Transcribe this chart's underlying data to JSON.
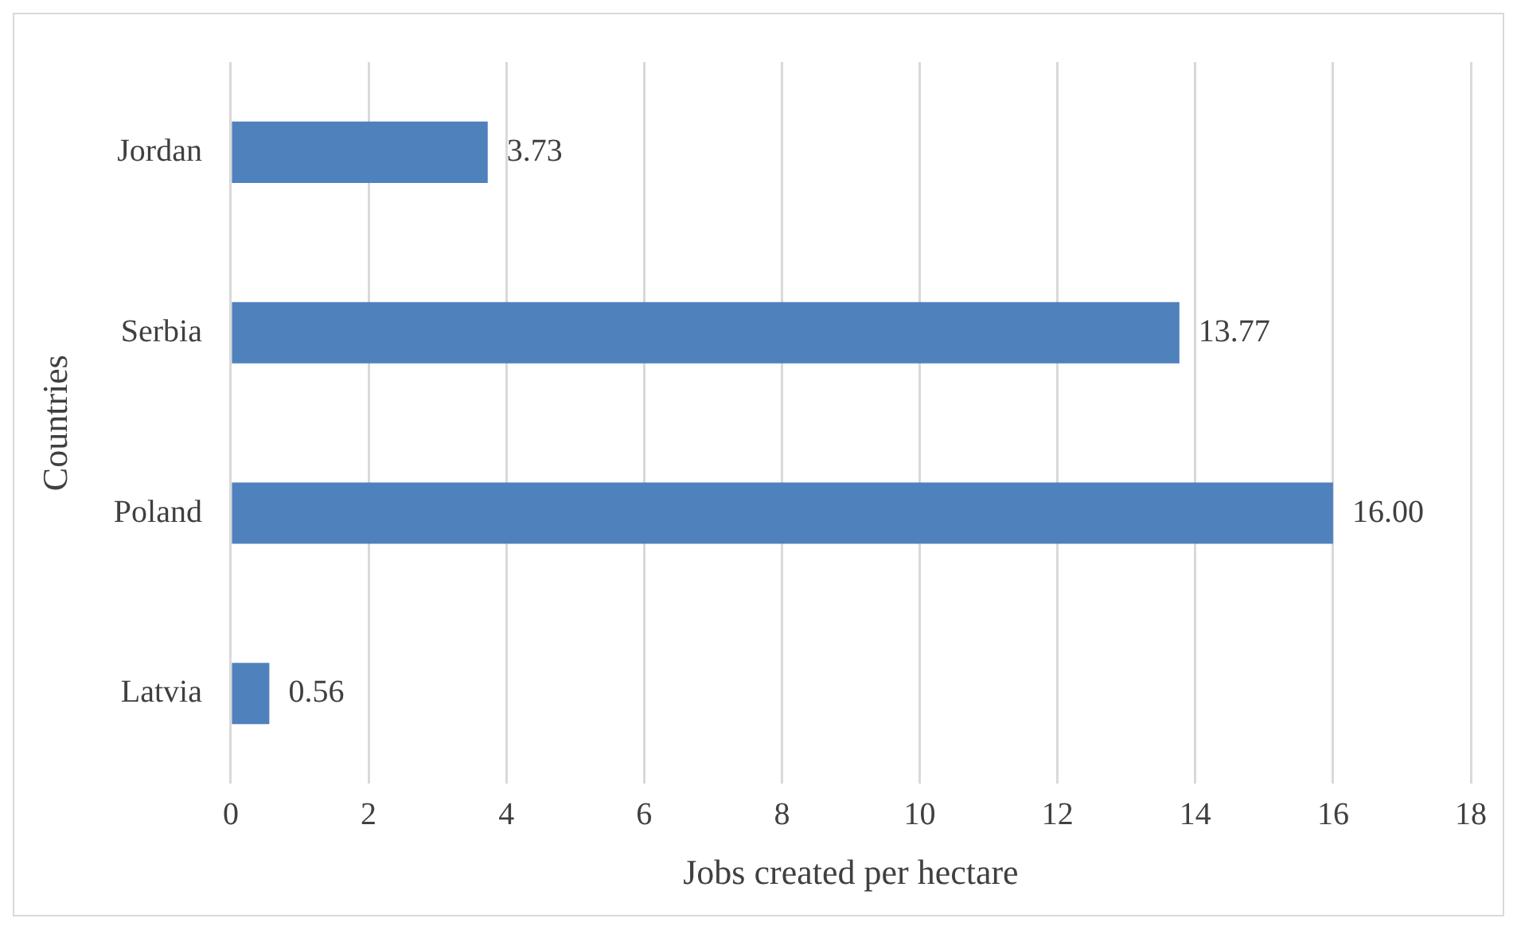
{
  "chart_data": {
    "type": "bar",
    "orientation": "horizontal",
    "xlabel": "Jobs created per hectare",
    "ylabel": "Countries",
    "categories": [
      "Jordan",
      "Serbia",
      "Poland",
      "Latvia"
    ],
    "values": [
      3.73,
      13.77,
      16.0,
      0.56
    ],
    "value_labels": [
      "3.73",
      "13.77",
      "16.00",
      "0.56"
    ],
    "color": "#4f81bd",
    "xlim": [
      0,
      18
    ],
    "xticks": [
      0,
      2,
      4,
      6,
      8,
      10,
      12,
      14,
      16,
      18
    ],
    "grid": "x"
  }
}
